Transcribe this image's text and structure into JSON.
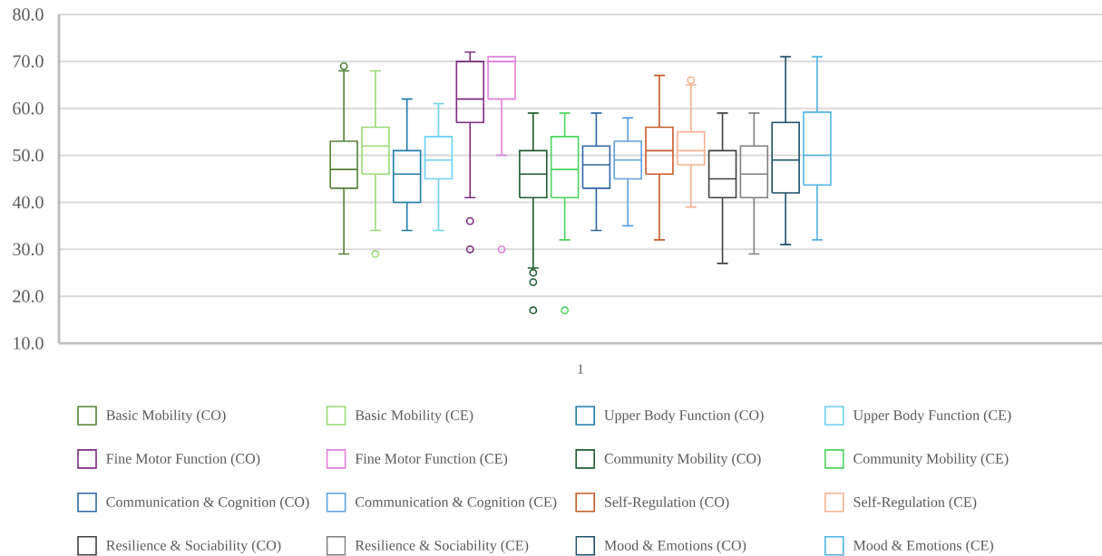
{
  "chart_data": {
    "type": "box",
    "categories": [
      "1"
    ],
    "series": [
      {
        "name": "Basic Mobility (CO)",
        "color": "#548235",
        "boxes": [
          {
            "low": 29,
            "q1": 43,
            "median": 47,
            "q3": 53,
            "high": 68,
            "outliers": [
              69
            ]
          }
        ]
      },
      {
        "name": "Basic Mobility (CE)",
        "color": "#99d977",
        "boxes": [
          {
            "low": 34,
            "q1": 46,
            "median": 52,
            "q3": 56,
            "high": 68,
            "outliers": [
              29
            ]
          }
        ]
      },
      {
        "name": "Upper Body Function (CO)",
        "color": "#1f7bab",
        "boxes": [
          {
            "low": 34,
            "q1": 40,
            "median": 46,
            "q3": 51,
            "high": 62
          }
        ]
      },
      {
        "name": "Upper Body Function (CE)",
        "color": "#6dd0f5",
        "boxes": [
          {
            "low": 34,
            "q1": 45,
            "median": 49,
            "q3": 54,
            "high": 61
          }
        ]
      },
      {
        "name": "Fine Motor Function (CO)",
        "color": "#7f2a80",
        "boxes": [
          {
            "low": 41,
            "q1": 57,
            "median": 62,
            "q3": 70,
            "high": 72,
            "outliers": [
              36,
              30
            ]
          }
        ]
      },
      {
        "name": "Fine Motor Function (CE)",
        "color": "#e07fdc",
        "boxes": [
          {
            "low": 50,
            "q1": 62,
            "median": 70,
            "q3": 71,
            "high": 71,
            "outliers": [
              30
            ]
          }
        ]
      },
      {
        "name": "Community Mobility (CO)",
        "color": "#1f5c2e",
        "boxes": [
          {
            "low": 26,
            "q1": 41,
            "median": 46,
            "q3": 51,
            "high": 59,
            "outliers": [
              25,
              23,
              17
            ]
          }
        ]
      },
      {
        "name": "Community Mobility (CE)",
        "color": "#4cd45e",
        "boxes": [
          {
            "low": 32,
            "q1": 41,
            "median": 47,
            "q3": 54,
            "high": 59,
            "outliers": [
              17
            ]
          }
        ]
      },
      {
        "name": "Communication & Cognition (CO)",
        "color": "#2f67a6",
        "boxes": [
          {
            "low": 34,
            "q1": 43,
            "median": 48,
            "q3": 52,
            "high": 59
          }
        ]
      },
      {
        "name": "Communication & Cognition (CE)",
        "color": "#5fa0e3",
        "boxes": [
          {
            "low": 35,
            "q1": 45,
            "median": 49,
            "q3": 53,
            "high": 58
          }
        ]
      },
      {
        "name": "Self-Regulation (CO)",
        "color": "#c65b28",
        "boxes": [
          {
            "low": 32,
            "q1": 46,
            "median": 51,
            "q3": 56,
            "high": 67
          }
        ]
      },
      {
        "name": "Self-Regulation (CE)",
        "color": "#f5b190",
        "boxes": [
          {
            "low": 39,
            "q1": 48,
            "median": 51,
            "q3": 55,
            "high": 65,
            "outliers": [
              66
            ]
          }
        ]
      },
      {
        "name": "Resilience & Sociability (CO)",
        "color": "#404040",
        "boxes": [
          {
            "low": 27,
            "q1": 41,
            "median": 45,
            "q3": 51,
            "high": 59
          }
        ]
      },
      {
        "name": "Resilience & Sociability (CE)",
        "color": "#7f7f7f",
        "boxes": [
          {
            "low": 29,
            "q1": 41,
            "median": 46,
            "q3": 52,
            "high": 59
          }
        ]
      },
      {
        "name": "Mood & Emotions (CO)",
        "color": "#1d4f6b",
        "boxes": [
          {
            "low": 31,
            "q1": 42,
            "median": 49,
            "q3": 57,
            "high": 71
          }
        ]
      },
      {
        "name": "Mood & Emotions (CE)",
        "color": "#4fb4e3",
        "boxes": [
          {
            "low": 32,
            "q1": 43.7,
            "median": 50,
            "q3": 59.2,
            "high": 71
          }
        ]
      }
    ],
    "ylim": [
      10,
      80
    ],
    "yticks": [
      {
        "value": 10,
        "label": "10.0"
      },
      {
        "value": 20,
        "label": "20.0"
      },
      {
        "value": 30,
        "label": "30.0"
      },
      {
        "value": 40,
        "label": "40.0"
      },
      {
        "value": 50,
        "label": "50.0"
      },
      {
        "value": 60,
        "label": "60.0"
      },
      {
        "value": 70,
        "label": "70.0"
      },
      {
        "value": 80,
        "label": "80.0"
      }
    ],
    "grid": "y",
    "legend": "bottom"
  }
}
